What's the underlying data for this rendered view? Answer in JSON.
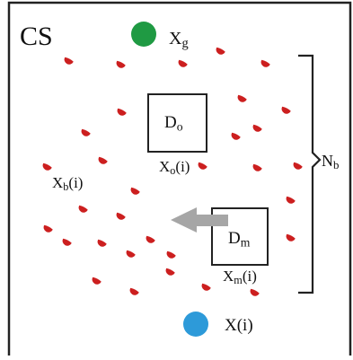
{
  "frame": {
    "title": "CS"
  },
  "labels": {
    "xg_base": "X",
    "xg_sub": "g",
    "do_base": "D",
    "do_sub": "o",
    "xo_base": "X",
    "xo_sub": "o",
    "xo_index": "(i)",
    "xb_base": "X",
    "xb_sub": "b",
    "xb_index": "(i)",
    "dm_base": "D",
    "dm_sub": "m",
    "xm_base": "X",
    "xm_sub": "m",
    "xm_index": "(i)",
    "nb_base": "N",
    "nb_sub": "b",
    "xi": "X(i)"
  },
  "colors": {
    "particle": "#cc1f1f",
    "goal": "#1f9a43",
    "agent": "#2d9ad9",
    "arrow": "#a6a6a6",
    "frame": "#222222"
  }
}
